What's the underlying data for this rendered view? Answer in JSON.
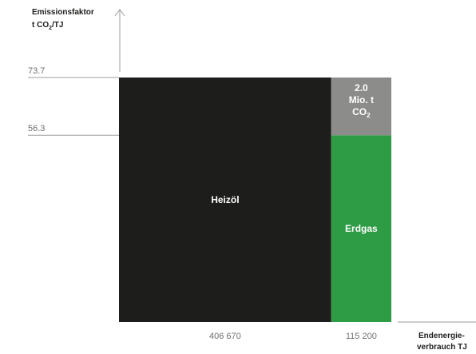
{
  "chart_data": {
    "type": "bar",
    "title": "",
    "ylabel_line1": "Emissionsfaktor",
    "ylabel_line2": "t CO",
    "ylabel_line2_sub": "2",
    "ylabel_line2_rest": "/TJ",
    "xlabel_line1": "Endenergie-",
    "xlabel_line2": "verbrauch TJ",
    "y_ticks": [
      {
        "value": 73.7,
        "label": "73.7"
      },
      {
        "value": 56.3,
        "label": "56.3"
      }
    ],
    "ylim": [
      0,
      80
    ],
    "bars": [
      {
        "name": "Heizöl",
        "width_value": 406670,
        "width_label": "406 670",
        "height_value": 73.7,
        "color": "#1d1d1b"
      },
      {
        "name": "Erdgas",
        "width_value": 115200,
        "width_label": "115 200",
        "height_value": 56.3,
        "color": "#2e9b45"
      }
    ],
    "difference": {
      "from": 56.3,
      "to": 73.7,
      "color": "#8c8c8b",
      "label_lines": [
        "2.0",
        "Mio. t",
        "CO"
      ],
      "label_sub": "2"
    }
  }
}
